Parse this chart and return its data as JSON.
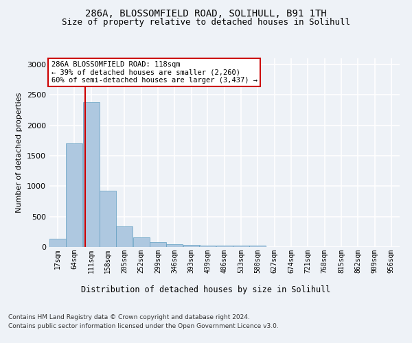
{
  "title_line1": "286A, BLOSSOMFIELD ROAD, SOLIHULL, B91 1TH",
  "title_line2": "Size of property relative to detached houses in Solihull",
  "xlabel": "Distribution of detached houses by size in Solihull",
  "ylabel": "Number of detached properties",
  "bin_labels": [
    "17sqm",
    "64sqm",
    "111sqm",
    "158sqm",
    "205sqm",
    "252sqm",
    "299sqm",
    "346sqm",
    "393sqm",
    "439sqm",
    "486sqm",
    "533sqm",
    "580sqm",
    "627sqm",
    "674sqm",
    "721sqm",
    "768sqm",
    "815sqm",
    "862sqm",
    "909sqm",
    "956sqm"
  ],
  "bin_edges": [
    17,
    64,
    111,
    158,
    205,
    252,
    299,
    346,
    393,
    439,
    486,
    533,
    580,
    627,
    674,
    721,
    768,
    815,
    862,
    909,
    956,
    1003
  ],
  "bar_heights": [
    130,
    1700,
    2380,
    920,
    340,
    160,
    80,
    50,
    35,
    25,
    20,
    20,
    20,
    0,
    0,
    0,
    0,
    0,
    0,
    0,
    0
  ],
  "bar_color": "#aec8e0",
  "bar_edge_color": "#5f9dc0",
  "property_size": 118,
  "vline_color": "#cc0000",
  "annotation_text": "286A BLOSSOMFIELD ROAD: 118sqm\n← 39% of detached houses are smaller (2,260)\n60% of semi-detached houses are larger (3,437) →",
  "annotation_box_color": "#ffffff",
  "annotation_box_edge_color": "#cc0000",
  "ylim": [
    0,
    3100
  ],
  "yticks": [
    0,
    500,
    1000,
    1500,
    2000,
    2500,
    3000
  ],
  "footer_line1": "Contains HM Land Registry data © Crown copyright and database right 2024.",
  "footer_line2": "Contains public sector information licensed under the Open Government Licence v3.0.",
  "background_color": "#eef2f7",
  "plot_background_color": "#eef2f7",
  "grid_color": "#ffffff",
  "title1_fontsize": 10,
  "title2_fontsize": 9,
  "annotation_fontsize": 7.5,
  "footer_fontsize": 6.5,
  "ylabel_fontsize": 8,
  "xlabel_fontsize": 8.5,
  "tick_fontsize": 7
}
